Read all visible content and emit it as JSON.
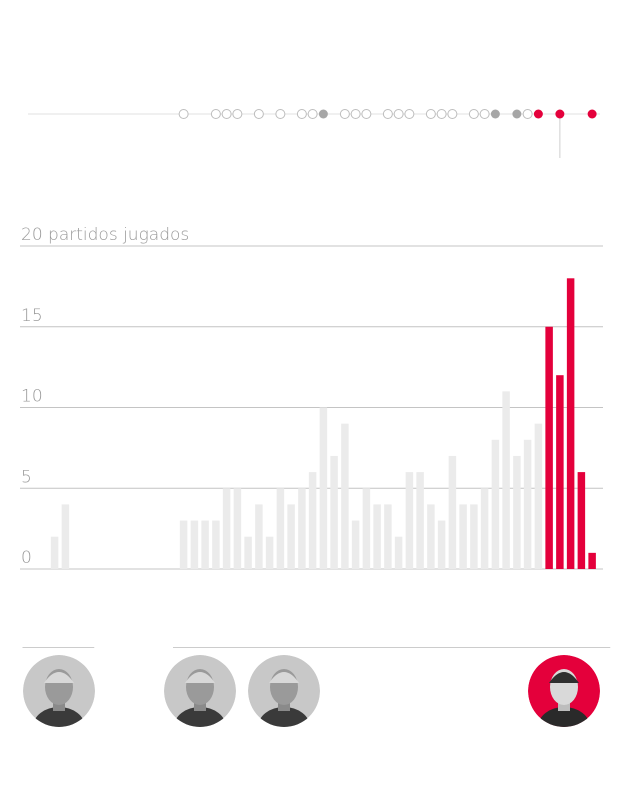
{
  "chart_data": {
    "type": "bar",
    "title": "",
    "xlabel": "",
    "ylabel": "partidos jugados",
    "ylim": [
      0,
      20
    ],
    "y_ticks": [
      0,
      5,
      10,
      15,
      20
    ],
    "y_top_label": "20 partidos jugados",
    "grid": true,
    "legend": "none",
    "slot_count": 53,
    "values": [
      null,
      2,
      4,
      null,
      null,
      null,
      null,
      null,
      null,
      null,
      null,
      null,
      null,
      3,
      3,
      3,
      3,
      5,
      5,
      2,
      4,
      2,
      5,
      4,
      5,
      6,
      10,
      7,
      9,
      3,
      5,
      4,
      4,
      2,
      6,
      6,
      4,
      3,
      7,
      4,
      4,
      5,
      8,
      11,
      7,
      8,
      9,
      15,
      12,
      18,
      6,
      1,
      null
    ],
    "highlight_from_index": 47,
    "colors": {
      "muted": "#ebebeb",
      "highlight": "#e4003b",
      "grey_dot": "#a6a6a6",
      "axis": "#c4c4c4",
      "text": "#999999"
    }
  },
  "timeline": {
    "dots": [
      {
        "slot": 13,
        "style": "open"
      },
      {
        "slot": 16,
        "style": "open"
      },
      {
        "slot": 17,
        "style": "open"
      },
      {
        "slot": 18,
        "style": "open"
      },
      {
        "slot": 20,
        "style": "open"
      },
      {
        "slot": 22,
        "style": "open"
      },
      {
        "slot": 24,
        "style": "open"
      },
      {
        "slot": 25,
        "style": "open"
      },
      {
        "slot": 26,
        "style": "grey"
      },
      {
        "slot": 28,
        "style": "open"
      },
      {
        "slot": 29,
        "style": "open"
      },
      {
        "slot": 30,
        "style": "open"
      },
      {
        "slot": 32,
        "style": "open"
      },
      {
        "slot": 33,
        "style": "open"
      },
      {
        "slot": 34,
        "style": "open"
      },
      {
        "slot": 36,
        "style": "open"
      },
      {
        "slot": 37,
        "style": "open"
      },
      {
        "slot": 38,
        "style": "open"
      },
      {
        "slot": 40,
        "style": "open"
      },
      {
        "slot": 41,
        "style": "open"
      },
      {
        "slot": 42,
        "style": "grey"
      },
      {
        "slot": 44,
        "style": "grey"
      },
      {
        "slot": 45,
        "style": "open"
      },
      {
        "slot": 46,
        "style": "red"
      },
      {
        "slot": 48,
        "style": "red"
      },
      {
        "slot": 51,
        "style": "red"
      }
    ],
    "marker_slot": 48
  },
  "coach_periods": [
    {
      "name": "coach-1",
      "start_slot": 0,
      "end_slot": 5,
      "photo_slot": 3,
      "highlight": false
    },
    {
      "name": "coach-2",
      "start_slot": 14,
      "end_slot": 19,
      "photo_slot": 16,
      "highlight": false
    },
    {
      "name": "coach-3",
      "start_slot": 20,
      "end_slot": 46,
      "photo_slot": 24,
      "highlight": false
    },
    {
      "name": "coach-4",
      "start_slot": 47,
      "end_slot": 53,
      "photo_slot": 49,
      "highlight": true
    }
  ]
}
